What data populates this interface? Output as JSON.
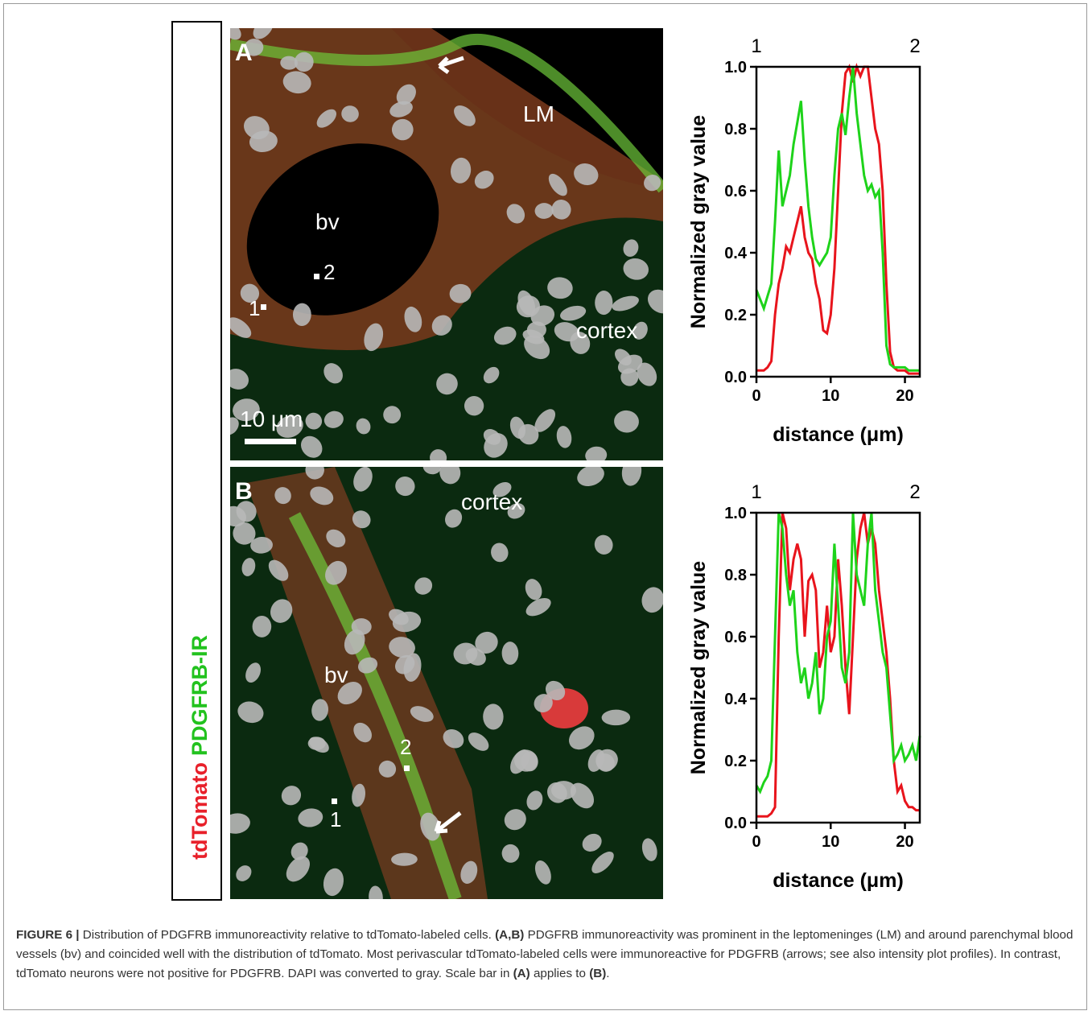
{
  "figure": {
    "side_label": {
      "red": "tdTomato",
      "green": "PDGFRB-IR"
    },
    "panels": [
      {
        "letter": "A",
        "labels": [
          "LM",
          "bv",
          "cortex"
        ],
        "points": [
          "1",
          "2"
        ],
        "scale_bar": "10 μm"
      },
      {
        "letter": "B",
        "labels": [
          "cortex",
          "bv"
        ],
        "points": [
          "1",
          "2"
        ]
      }
    ],
    "caption": [
      {
        "text": "FIGURE 6 |",
        "bold": true
      },
      {
        "text": " Distribution of PDGFRB immunoreactivity relative to tdTomato-labeled cells. ",
        "bold": false
      },
      {
        "text": "(A,B)",
        "bold": true
      },
      {
        "text": " PDGFRB immunoreactivity was prominent in the leptomeninges (LM) and around parenchymal blood vessels (bv) and coincided well with the distribution of tdTomato. Most perivascular tdTomato-labeled cells were immunoreactive for PDGFRB (arrows; see also intensity plot profiles). In contrast, tdTomato neurons were not positive for PDGFRB. DAPI was converted to gray. Scale bar in ",
        "bold": false
      },
      {
        "text": "(A)",
        "bold": true
      },
      {
        "text": " applies to ",
        "bold": false
      },
      {
        "text": "(B)",
        "bold": true
      },
      {
        "text": ".",
        "bold": false
      }
    ]
  },
  "chart_data": [
    {
      "type": "line",
      "x_label": "distance (μm)",
      "y_label": "Normalized gray value",
      "annotations": [
        "1",
        "2"
      ],
      "x": [
        0,
        0.5,
        1,
        1.5,
        2,
        2.5,
        3,
        3.5,
        4,
        4.5,
        5,
        5.5,
        6,
        6.5,
        7,
        7.5,
        8,
        8.5,
        9,
        9.5,
        10,
        10.5,
        11,
        11.5,
        12,
        12.5,
        13,
        13.5,
        14,
        14.5,
        15,
        15.5,
        16,
        16.5,
        17,
        17.5,
        18,
        18.5,
        19,
        19.5,
        20,
        20.5,
        21,
        21.5,
        22
      ],
      "series": [
        {
          "color": "#e8141c",
          "values": [
            0.02,
            0.02,
            0.02,
            0.03,
            0.05,
            0.2,
            0.3,
            0.35,
            0.42,
            0.4,
            0.45,
            0.5,
            0.55,
            0.45,
            0.4,
            0.38,
            0.3,
            0.25,
            0.15,
            0.14,
            0.2,
            0.35,
            0.6,
            0.85,
            0.98,
            1.0,
            0.95,
            1.0,
            0.97,
            1.0,
            1.0,
            0.9,
            0.8,
            0.75,
            0.6,
            0.3,
            0.08,
            0.03,
            0.02,
            0.02,
            0.02,
            0.01,
            0.01,
            0.01,
            0.01
          ]
        },
        {
          "color": "#1ed31a",
          "values": [
            0.28,
            0.25,
            0.22,
            0.26,
            0.3,
            0.5,
            0.73,
            0.55,
            0.6,
            0.65,
            0.75,
            0.82,
            0.89,
            0.7,
            0.55,
            0.45,
            0.38,
            0.36,
            0.38,
            0.4,
            0.45,
            0.65,
            0.8,
            0.85,
            0.78,
            0.9,
            1.0,
            0.85,
            0.75,
            0.65,
            0.6,
            0.62,
            0.58,
            0.6,
            0.4,
            0.1,
            0.04,
            0.03,
            0.03,
            0.03,
            0.03,
            0.02,
            0.02,
            0.02,
            0.02
          ]
        }
      ],
      "xlim": [
        0,
        22
      ],
      "ylim": [
        0,
        1
      ],
      "xticks": [
        0,
        10,
        20
      ],
      "yticks": [
        {
          "value": 0,
          "label": "0.0"
        },
        0.2,
        0.4,
        0.6,
        0.8,
        {
          "value": 1,
          "label": "1.0"
        }
      ]
    },
    {
      "type": "line",
      "x_label": "distance (μm)",
      "y_label": "Normalized gray value",
      "annotations": [
        "1",
        "2"
      ],
      "x": [
        0,
        0.5,
        1,
        1.5,
        2,
        2.5,
        3,
        3.5,
        4,
        4.5,
        5,
        5.5,
        6,
        6.5,
        7,
        7.5,
        8,
        8.5,
        9,
        9.5,
        10,
        10.5,
        11,
        11.5,
        12,
        12.5,
        13,
        13.5,
        14,
        14.5,
        15,
        15.5,
        16,
        16.5,
        17,
        17.5,
        18,
        18.5,
        19,
        19.5,
        20,
        20.5,
        21,
        21.5,
        22
      ],
      "series": [
        {
          "color": "#e8141c",
          "values": [
            0.02,
            0.02,
            0.02,
            0.02,
            0.03,
            0.05,
            0.6,
            1.0,
            0.95,
            0.75,
            0.85,
            0.9,
            0.85,
            0.6,
            0.78,
            0.8,
            0.75,
            0.5,
            0.55,
            0.7,
            0.55,
            0.6,
            0.85,
            0.7,
            0.5,
            0.35,
            0.6,
            0.85,
            0.95,
            1.0,
            0.9,
            0.95,
            0.9,
            0.75,
            0.65,
            0.55,
            0.4,
            0.2,
            0.1,
            0.12,
            0.07,
            0.05,
            0.05,
            0.04,
            0.04
          ]
        },
        {
          "color": "#1ed31a",
          "values": [
            0.12,
            0.1,
            0.13,
            0.15,
            0.2,
            0.6,
            1.0,
            0.95,
            0.8,
            0.7,
            0.75,
            0.55,
            0.45,
            0.5,
            0.4,
            0.45,
            0.55,
            0.35,
            0.4,
            0.6,
            0.65,
            0.9,
            0.7,
            0.5,
            0.45,
            0.55,
            1.0,
            0.8,
            0.75,
            0.7,
            0.9,
            1.0,
            0.75,
            0.65,
            0.55,
            0.5,
            0.35,
            0.2,
            0.22,
            0.25,
            0.2,
            0.22,
            0.25,
            0.2,
            0.28
          ]
        }
      ],
      "xlim": [
        0,
        22
      ],
      "ylim": [
        0,
        1
      ],
      "xticks": [
        0,
        10,
        20
      ],
      "yticks": [
        {
          "value": 0,
          "label": "0.0"
        },
        0.2,
        0.4,
        0.6,
        0.8,
        {
          "value": 1,
          "label": "1.0"
        }
      ]
    }
  ]
}
